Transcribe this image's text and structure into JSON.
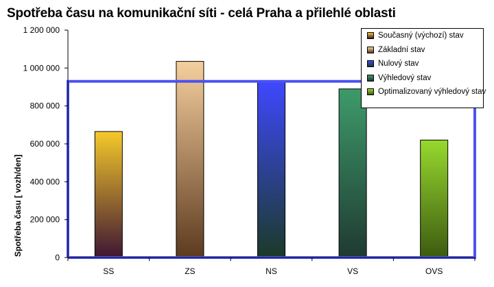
{
  "chart_data": {
    "type": "bar",
    "title": "Spotřeba času na komunikační síti - celá Praha a přilehlé oblasti",
    "xlabel": "",
    "ylabel": "Spotřeba času  [ vozh/den]",
    "ylim": [
      0,
      1200000
    ],
    "yticks": [
      "0",
      "200 000",
      "400 000",
      "600 000",
      "800 000",
      "1 000 000",
      "1 200 000"
    ],
    "categories": [
      "SS",
      "ZS",
      "NS",
      "VS",
      "OVS"
    ],
    "values": [
      665000,
      1035000,
      930000,
      890000,
      620000
    ],
    "legend": {
      "position": "top-right",
      "entries": [
        "Současný (výchozí) stav",
        "Základní stav",
        "Nulový stav",
        "Výhledový stav",
        "Optimalizovaný výhledový stav"
      ]
    },
    "colors": [
      {
        "top": "#f6c92a",
        "bottom": "#3e1633"
      },
      {
        "top": "#f6cf9e",
        "bottom": "#5c3a1f"
      },
      {
        "top": "#3e48ff",
        "bottom": "#1b3a28"
      },
      {
        "top": "#3e9a6a",
        "bottom": "#1f3a32"
      },
      {
        "top": "#97d92e",
        "bottom": "#3d5a10"
      }
    ],
    "grid": false
  }
}
